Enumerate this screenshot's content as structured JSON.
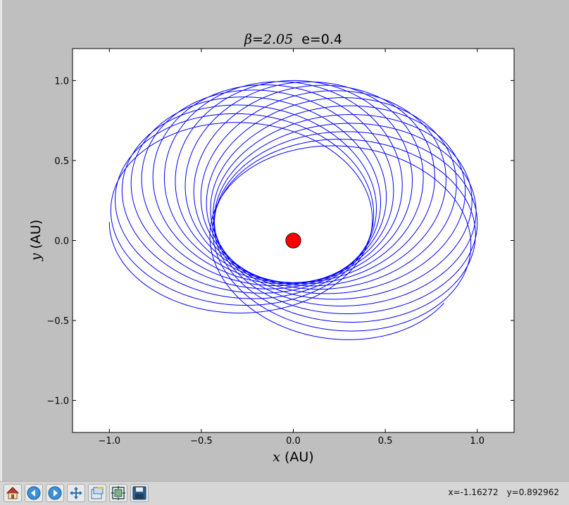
{
  "window": {
    "background": "#bfbfbf",
    "status": {
      "x_readout": "x=-1.16272",
      "y_readout": "y=0.892962"
    }
  },
  "toolbar": {
    "buttons": [
      {
        "name": "home-button",
        "icon": "home-icon"
      },
      {
        "name": "back-button",
        "icon": "back-arrow-icon"
      },
      {
        "name": "forward-button",
        "icon": "forward-arrow-icon"
      },
      {
        "name": "pan-button",
        "icon": "pan-move-icon"
      },
      {
        "name": "zoom-button",
        "icon": "zoom-rect-icon"
      },
      {
        "name": "subplots-button",
        "icon": "configure-subplots-icon"
      },
      {
        "name": "save-button",
        "icon": "save-floppy-icon"
      }
    ]
  },
  "chart_data": {
    "type": "line",
    "title": "β=2.05  e=0.4",
    "title_math": "β=2.05",
    "title_text": "e=0.4",
    "xlabel_var": "x",
    "xlabel_unit": "(AU)",
    "ylabel_var": "y",
    "ylabel_unit": "(AU)",
    "xlim": [
      -1.2,
      1.2
    ],
    "ylim": [
      -1.2,
      1.2
    ],
    "xticks": [
      -1.0,
      -0.5,
      0.0,
      0.5,
      1.0
    ],
    "yticks": [
      -1.0,
      -0.5,
      0.0,
      0.5,
      1.0
    ],
    "xtick_labels": [
      "−1.0",
      "−0.5",
      "0.0",
      "0.5",
      "1.0"
    ],
    "ytick_labels": [
      "−1.0",
      "−0.5",
      "0.0",
      "0.5",
      "1.0"
    ],
    "grid": false,
    "orbit": {
      "description_kind": "precessing elliptical orbit",
      "eccentricity": 0.4,
      "start_point": [
        1.0,
        0.0
      ],
      "periapsis_radius": 0.2571,
      "apoapsis_radius": 0.6,
      "precession_total_deg": 215,
      "num_orbits": 19,
      "color": "#0000ff"
    },
    "star": {
      "x": 0.0,
      "y": 0.0,
      "radius_au": 0.041,
      "color": "#ff0000",
      "edge": "#000000"
    }
  }
}
